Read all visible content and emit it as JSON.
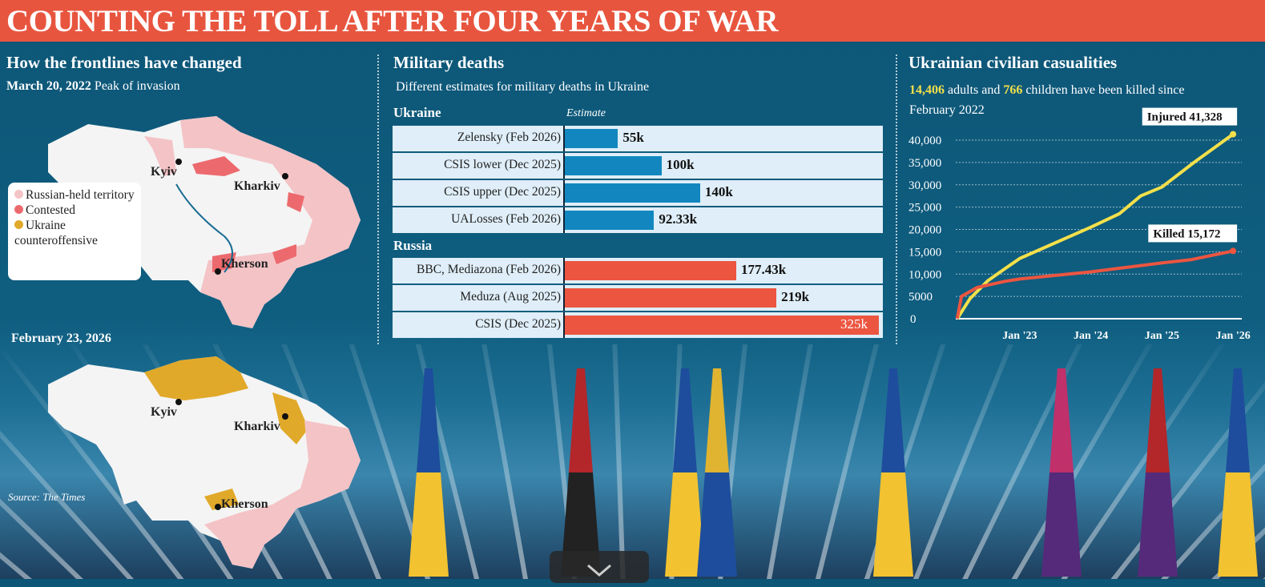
{
  "title": "COUNTING THE TOLL AFTER FOUR YEARS OF WAR",
  "maps": {
    "heading": "How the frontlines have changed",
    "map1_date": "March 20, 2022",
    "map1_caption": "Peak of invasion",
    "map2_date": "February 23, 2026",
    "cities": [
      "Kyiv",
      "Kharkiv",
      "Kherson"
    ],
    "legend": [
      {
        "label": "Russian-held territory",
        "color": "#f4c3c6"
      },
      {
        "label": "Contested",
        "color": "#ec6a6e"
      },
      {
        "label": "Ukraine counteroffensive",
        "color": "#e1a92a"
      }
    ],
    "source": "Source: The Times"
  },
  "chart_data": [
    {
      "type": "bar",
      "title": "Military deaths",
      "subtitle": "Different estimates for military deaths in Ukraine",
      "value_header": "Estimate",
      "xlim": [
        0,
        325
      ],
      "unit": "k",
      "groups": [
        {
          "name": "Ukraine",
          "color": "#1287bf",
          "categories": [
            "Zelensky (Feb 2026)",
            "CSIS lower (Dec 2025)",
            "CSIS upper (Dec 2025)",
            "UALosses (Feb 2026)"
          ],
          "values": [
            55,
            100,
            140,
            92.33
          ],
          "labels": [
            "55k",
            "100k",
            "140k",
            "92.33k"
          ]
        },
        {
          "name": "Russia",
          "color": "#ec5540",
          "categories": [
            "BBC, Mediazona (Feb 2026)",
            "Meduza (Aug 2025)",
            "CSIS (Dec 2025)"
          ],
          "values": [
            177.43,
            219,
            325
          ],
          "labels": [
            "177.43k",
            "219k",
            "325k"
          ]
        }
      ]
    },
    {
      "type": "line",
      "title": "Ukrainian civilian casualities",
      "subtitle": {
        "adults": "14,406",
        "t1": " adults and ",
        "children": "766",
        "t2": " children have been killed since February 2022"
      },
      "xlim": [
        2022.1,
        2026.1
      ],
      "ylim": [
        0,
        40000
      ],
      "yticks": [
        0,
        5000,
        10000,
        15000,
        20000,
        25000,
        30000,
        35000,
        40000
      ],
      "ytick_labels": [
        "0",
        "5000",
        "10,000",
        "15,000",
        "20,000",
        "25,000",
        "30,000",
        "35,000",
        "40,000"
      ],
      "xticks": [
        2023,
        2024,
        2025,
        2026
      ],
      "xtick_labels": [
        "Jan '23",
        "Jan '24",
        "Jan '25",
        "Jan '26"
      ],
      "series": [
        {
          "name": "Injured",
          "label": "Injured 41,328",
          "color": "#f3e04a",
          "x": [
            2022.12,
            2022.3,
            2022.55,
            2022.8,
            2023.0,
            2023.5,
            2024.0,
            2024.4,
            2024.7,
            2025.0,
            2025.45,
            2026.0
          ],
          "y": [
            0,
            4500,
            8500,
            11300,
            13500,
            17000,
            20500,
            23500,
            27500,
            29500,
            35000,
            41328
          ]
        },
        {
          "name": "Killed",
          "label": "Killed 15,172",
          "color": "#ec5540",
          "x": [
            2022.12,
            2022.18,
            2022.4,
            2022.8,
            2023.0,
            2023.5,
            2024.0,
            2024.5,
            2025.0,
            2025.4,
            2026.0
          ],
          "y": [
            0,
            5000,
            7000,
            8400,
            8900,
            9700,
            10500,
            11500,
            12500,
            13200,
            15172
          ]
        }
      ]
    }
  ]
}
